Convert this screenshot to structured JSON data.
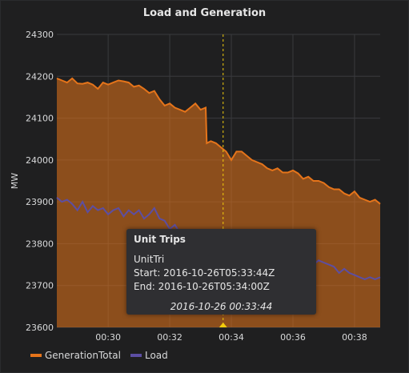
{
  "panel": {
    "title": "Load and Generation"
  },
  "tooltip": {
    "title": "Unit Trips",
    "text": "UnitTri",
    "start": "Start: 2016-10-26T05:33:44Z",
    "end": "End: 2016-10-26T05:34:00Z",
    "time": "2016-10-26 00:33:44"
  },
  "legend": {
    "items": [
      {
        "label": "GenerationTotal",
        "color": "#e5741a"
      },
      {
        "label": "Load",
        "color": "#5c4ea3"
      }
    ]
  },
  "chart_data": {
    "type": "area",
    "title": "Load and Generation",
    "xlabel": "",
    "ylabel": "MW",
    "ylim": [
      23600,
      24300
    ],
    "xlim": [
      "00:28:20",
      "00:38:50"
    ],
    "yticks": [
      23600,
      23700,
      23800,
      23900,
      24000,
      24100,
      24200,
      24300
    ],
    "xticks": [
      "00:30",
      "00:32",
      "00:34",
      "00:36",
      "00:38"
    ],
    "grid": true,
    "legend_position": "bottom-left",
    "annotation": {
      "time": "00:33:44",
      "label": "Unit Trips"
    },
    "series": [
      {
        "name": "GenerationTotal",
        "color": "#e5741a",
        "x": [
          "00:28:20",
          "00:28:30",
          "00:28:40",
          "00:28:50",
          "00:29:00",
          "00:29:10",
          "00:29:20",
          "00:29:30",
          "00:29:40",
          "00:29:50",
          "00:30:00",
          "00:30:10",
          "00:30:20",
          "00:30:30",
          "00:30:40",
          "00:30:50",
          "00:31:00",
          "00:31:10",
          "00:31:20",
          "00:31:30",
          "00:31:40",
          "00:31:50",
          "00:32:00",
          "00:32:10",
          "00:32:20",
          "00:32:30",
          "00:32:40",
          "00:32:50",
          "00:33:00",
          "00:33:10",
          "00:33:12",
          "00:33:20",
          "00:33:30",
          "00:33:40",
          "00:33:50",
          "00:34:00",
          "00:34:10",
          "00:34:20",
          "00:34:30",
          "00:34:40",
          "00:34:50",
          "00:35:00",
          "00:35:10",
          "00:35:20",
          "00:35:30",
          "00:35:40",
          "00:35:50",
          "00:36:00",
          "00:36:10",
          "00:36:20",
          "00:36:30",
          "00:36:40",
          "00:36:50",
          "00:37:00",
          "00:37:10",
          "00:37:20",
          "00:37:30",
          "00:37:40",
          "00:37:50",
          "00:38:00",
          "00:38:10",
          "00:38:20",
          "00:38:30",
          "00:38:40",
          "00:38:50"
        ],
        "values": [
          24195,
          24190,
          24185,
          24195,
          24183,
          24182,
          24185,
          24180,
          24170,
          24185,
          24180,
          24185,
          24190,
          24188,
          24185,
          24175,
          24178,
          24170,
          24160,
          24165,
          24145,
          24130,
          24135,
          24125,
          24120,
          24115,
          24125,
          24135,
          24120,
          24125,
          24040,
          24045,
          24040,
          24030,
          24020,
          24000,
          24020,
          24020,
          24010,
          24000,
          23995,
          23990,
          23980,
          23975,
          23980,
          23970,
          23970,
          23975,
          23968,
          23955,
          23960,
          23950,
          23950,
          23945,
          23935,
          23930,
          23930,
          23920,
          23915,
          23925,
          23910,
          23905,
          23900,
          23905,
          23895
        ]
      },
      {
        "name": "Load",
        "color": "#5c4ea3",
        "x": [
          "00:28:20",
          "00:28:30",
          "00:28:40",
          "00:28:50",
          "00:29:00",
          "00:29:10",
          "00:29:20",
          "00:29:30",
          "00:29:40",
          "00:29:50",
          "00:30:00",
          "00:30:10",
          "00:30:20",
          "00:30:30",
          "00:30:40",
          "00:30:50",
          "00:31:00",
          "00:31:10",
          "00:31:20",
          "00:31:30",
          "00:31:40",
          "00:31:50",
          "00:32:00",
          "00:32:10",
          "00:32:20",
          "00:32:30",
          "00:32:40",
          "00:32:50",
          "00:33:00",
          "00:33:10",
          "00:33:20",
          "00:33:30",
          "00:33:40",
          "00:33:50",
          "00:34:00",
          "00:34:10",
          "00:34:20",
          "00:34:30",
          "00:34:40",
          "00:34:50",
          "00:35:00",
          "00:35:10",
          "00:35:20",
          "00:35:30",
          "00:35:40",
          "00:35:50",
          "00:36:00",
          "00:36:10",
          "00:36:20",
          "00:36:30",
          "00:36:40",
          "00:36:50",
          "00:37:00",
          "00:37:10",
          "00:37:20",
          "00:37:30",
          "00:37:40",
          "00:37:50",
          "00:38:00",
          "00:38:10",
          "00:38:20",
          "00:38:30",
          "00:38:40",
          "00:38:50"
        ],
        "values": [
          23910,
          23900,
          23905,
          23895,
          23880,
          23900,
          23875,
          23890,
          23880,
          23885,
          23870,
          23880,
          23885,
          23865,
          23880,
          23870,
          23880,
          23860,
          23870,
          23885,
          23860,
          23855,
          23835,
          23845,
          23825,
          23820,
          23820,
          23830,
          23815,
          23810,
          23800,
          23800,
          23795,
          23790,
          23785,
          23780,
          23785,
          23775,
          23780,
          23775,
          23770,
          23770,
          23765,
          23770,
          23765,
          23760,
          23765,
          23760,
          23755,
          23755,
          23750,
          23760,
          23755,
          23750,
          23745,
          23730,
          23740,
          23730,
          23725,
          23720,
          23715,
          23720,
          23715,
          23720
        ]
      }
    ]
  }
}
